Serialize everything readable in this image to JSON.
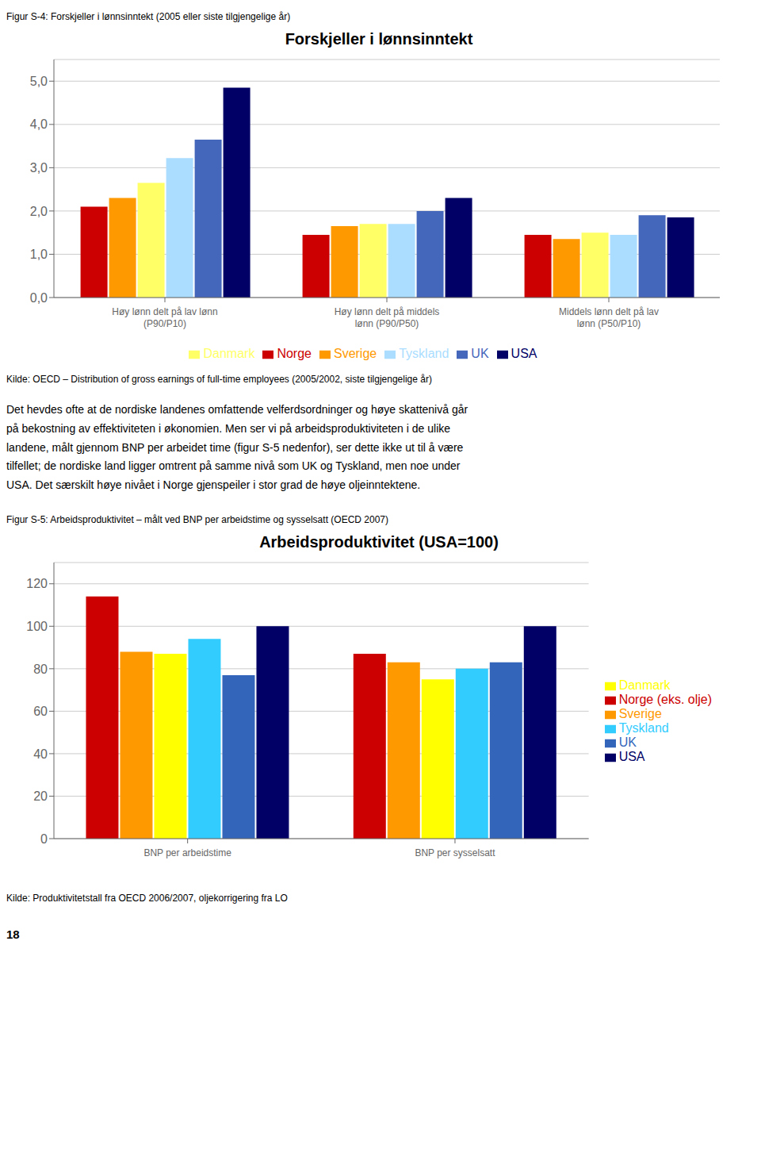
{
  "chart_data": [
    {
      "type": "bar",
      "title": "Forskjeller i lønnsinntekt",
      "annotations": [
        "Figur S-4: Forskjeller i lønnsinntekt (2005 eller siste tilgjengelige år)",
        "Kilde: OECD – Distribution of gross earnings of full-time employees (2005/2002, siste tilgjengelige år)",
        "Det hevdes ofte at de nordiske landenes omfattende velferdsordninger og høye skattenivå går\npå bekostning av effektiviteten i økonomien. Men ser vi på arbeidsproduktiviteten i de ulike\nlandene, målt gjennom BNP per arbeidet time (figur S-5 nedenfor), ser dette ikke ut til å være\ntilfellet; de nordiske land ligger omtrent på samme nivå som UK og Tyskland, men noe under\nUSA. Det særskilt høye nivået i Norge gjenspeiler i stor grad de høye oljeinntektene."
      ],
      "categories": [
        "Høy lønn delt på lav lønn\n(P90/P10)",
        "Høy lønn delt på middels\nlønn (P90/P50)",
        "Middels lønn delt på lav\nlønn (P50/P10)"
      ],
      "series": [
        {
          "name": "Norge",
          "color": "#CC0000",
          "values": [
            2.1,
            1.45,
            1.45
          ]
        },
        {
          "name": "Sverige",
          "color": "#FF9900",
          "values": [
            2.3,
            1.65,
            1.35
          ]
        },
        {
          "name": "Danmark",
          "color": "#FFFF66",
          "values": [
            2.65,
            1.7,
            1.5
          ]
        },
        {
          "name": "Tyskland",
          "color": "#AADDFF",
          "values": [
            3.22,
            1.7,
            1.45
          ]
        },
        {
          "name": "UK",
          "color": "#4466BB",
          "values": [
            3.65,
            2.0,
            1.9
          ]
        },
        {
          "name": "USA",
          "color": "#000066",
          "values": [
            4.85,
            2.3,
            1.85
          ]
        }
      ],
      "ylim": [
        0,
        5.5
      ],
      "yticks": [
        {
          "value": 0,
          "label": "0,0"
        },
        {
          "value": 1,
          "label": "1,0"
        },
        {
          "value": 2,
          "label": "2,0"
        },
        {
          "value": 3,
          "label": "3,0"
        },
        {
          "value": 4,
          "label": "4,0"
        },
        {
          "value": 5,
          "label": "5,0"
        }
      ],
      "grid": true,
      "legend": "bottom"
    },
    {
      "type": "bar",
      "title": "Arbeidsproduktivitet (USA=100)",
      "annotations": [
        "Figur S-5: Arbeidsproduktivitet – målt ved BNP per arbeidstime og sysselsatt (OECD 2007)",
        "Kilde: Produktivitetstall fra OECD 2006/2007, oljekorrigering fra LO",
        "18"
      ],
      "categories": [
        "BNP per arbeidstime",
        "BNP per sysselsatt"
      ],
      "series": [
        {
          "name": "Norge (eks. olje)",
          "color": "#CC0000",
          "values": [
            114,
            87
          ]
        },
        {
          "name": "Sverige",
          "color": "#FF9900",
          "values": [
            88,
            83
          ]
        },
        {
          "name": "Danmark",
          "color": "#FFFF00",
          "values": [
            87,
            75
          ]
        },
        {
          "name": "Tyskland",
          "color": "#33CCFF",
          "values": [
            94,
            80
          ]
        },
        {
          "name": "UK",
          "color": "#3366BB",
          "values": [
            77,
            83
          ]
        },
        {
          "name": "USA",
          "color": "#000066",
          "values": [
            100,
            100
          ]
        }
      ],
      "ylim": [
        0,
        130
      ],
      "yticks": [
        0,
        20,
        40,
        60,
        80,
        100,
        120
      ],
      "grid": true,
      "legend": "right"
    }
  ]
}
